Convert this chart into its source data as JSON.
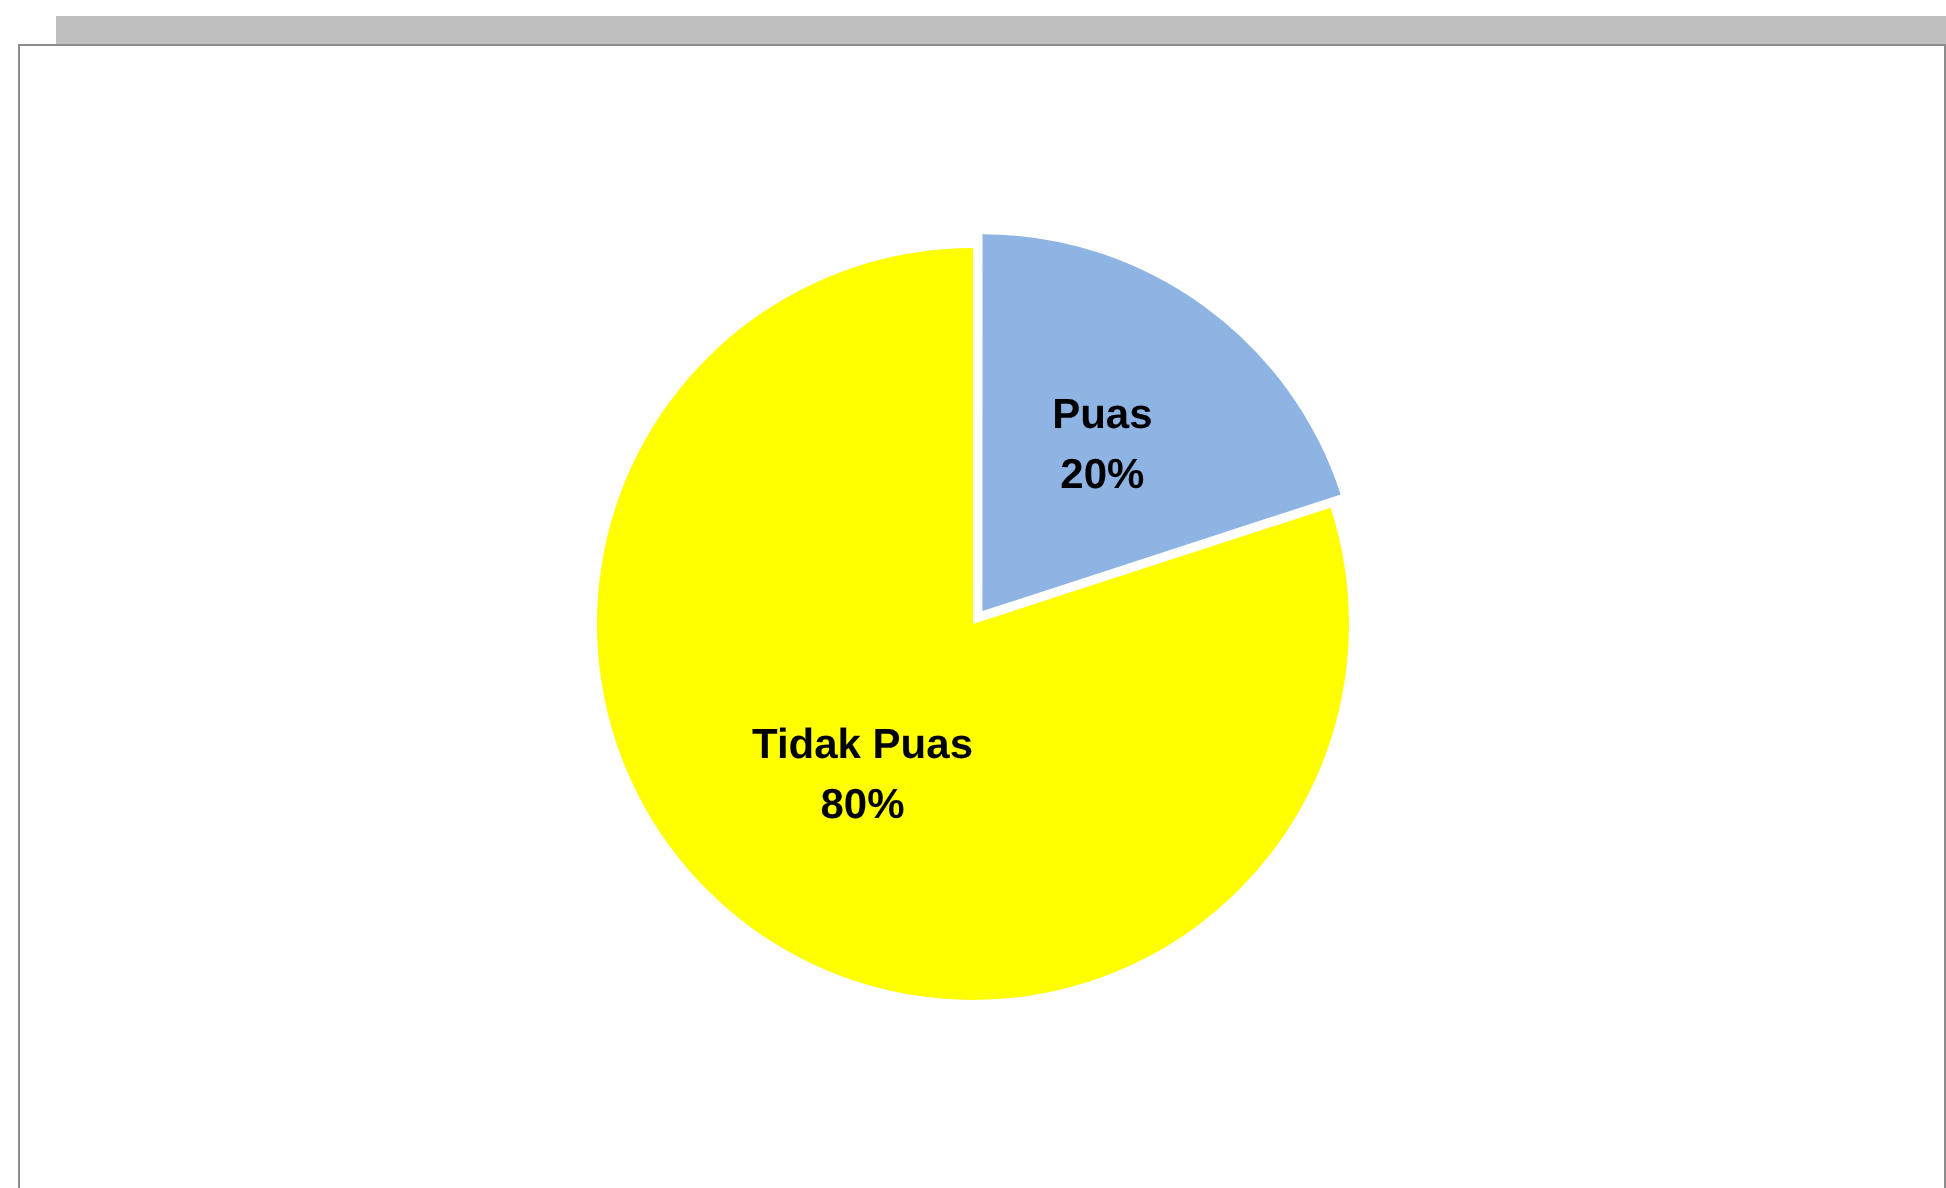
{
  "chart_data": {
    "type": "pie",
    "categories": [
      "Puas",
      "Tidak Puas"
    ],
    "values": [
      20,
      80
    ],
    "colors": [
      "#8eb4e3",
      "#ffff00"
    ],
    "value_labels": [
      "20%",
      "80%"
    ]
  }
}
